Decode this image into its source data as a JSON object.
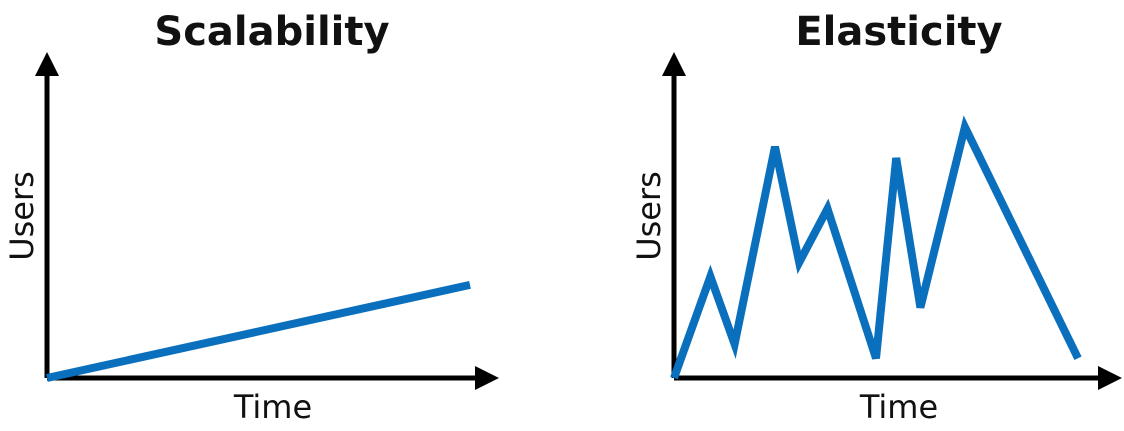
{
  "colors": {
    "series": "#0a6fbd",
    "axis": "#000000",
    "text": "#111111"
  },
  "chart_data": [
    {
      "type": "line",
      "title": "Scalability",
      "xlabel": "Time",
      "ylabel": "Users",
      "xlim": [
        0,
        100
      ],
      "ylim": [
        0,
        100
      ],
      "series": [
        {
          "x": [
            0,
            100
          ],
          "values": [
            0,
            33
          ]
        }
      ]
    },
    {
      "type": "line",
      "title": "Elasticity",
      "xlabel": "Time",
      "ylabel": "Users",
      "xlim": [
        0,
        100
      ],
      "ylim": [
        0,
        100
      ],
      "series": [
        {
          "x": [
            0,
            9,
            15,
            25,
            31,
            38,
            50,
            55,
            61,
            72,
            100
          ],
          "values": [
            0,
            36,
            12,
            82,
            41,
            60,
            7,
            78,
            25,
            89,
            7
          ]
        }
      ]
    }
  ]
}
